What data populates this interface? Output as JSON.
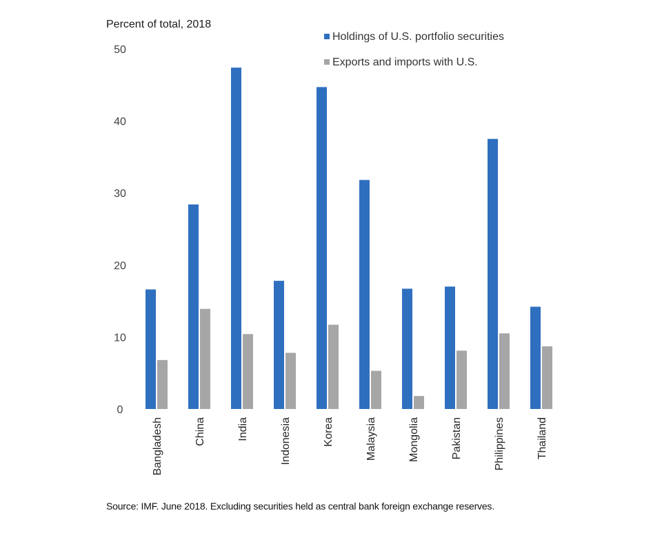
{
  "chart_data": {
    "type": "bar",
    "title": "",
    "ylabel": "Percent of total, 2018",
    "xlabel": "",
    "ylim": [
      0,
      50
    ],
    "yticks": [
      0,
      10,
      20,
      30,
      40,
      50
    ],
    "grid": false,
    "legend_position": "top-right",
    "categories": [
      "Bangladesh",
      "China",
      "India",
      "Indonesia",
      "Korea",
      "Malaysia",
      "Mongolia",
      "Pakistan",
      "Philippines",
      "Thailand"
    ],
    "series": [
      {
        "name": "Holdings of U.S. portfolio securities",
        "color": "#2f6fbf",
        "values": [
          16.6,
          28.4,
          47.4,
          17.8,
          44.7,
          31.8,
          16.7,
          17.0,
          37.5,
          14.2
        ]
      },
      {
        "name": "Exports and imports with U.S.",
        "color": "#a6a6a6",
        "values": [
          6.8,
          13.9,
          10.4,
          7.8,
          11.7,
          5.3,
          1.8,
          8.1,
          10.5,
          8.7
        ]
      }
    ]
  },
  "source_note": "Source: IMF. June 2018. Excluding securities held as central bank foreign exchange reserves."
}
